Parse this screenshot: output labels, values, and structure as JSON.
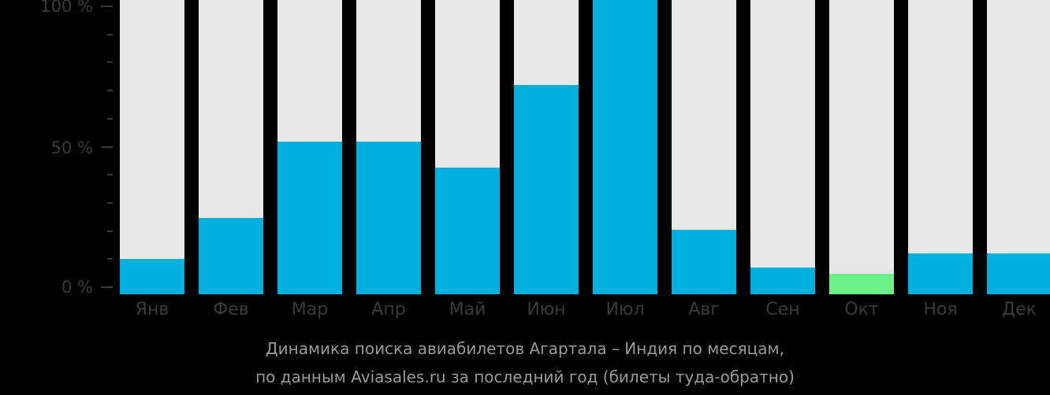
{
  "chart_data": {
    "type": "bar",
    "title": "Динамика поиска авиабилетов Агартала – Индия по месяцам, по данным Aviasales.ru за последний год (билеты туда-обратно)",
    "categories": [
      "Янв",
      "Фев",
      "Мар",
      "Апр",
      "Май",
      "Июн",
      "Июл",
      "Авг",
      "Сен",
      "Окт",
      "Ноя",
      "Дек"
    ],
    "values": [
      12,
      26,
      52,
      52,
      43,
      71,
      100,
      22,
      9,
      7,
      14,
      14
    ],
    "highlight_index": 9,
    "ylabel": "",
    "xlabel": "",
    "ylim": [
      0,
      100
    ],
    "yticks": [
      "0 %",
      "50 %",
      "100 %"
    ],
    "grid": false,
    "colors": {
      "bar": "#00b0dc",
      "highlight": "#6cf087",
      "track": "#e8e8e8",
      "background": "#000000"
    }
  },
  "axis": {
    "y_top": "100 %",
    "y_mid": "50 %",
    "y_bottom": "0 %"
  },
  "caption": {
    "line1": "Динамика поиска авиабилетов Агартала – Индия по месяцам,",
    "line2": "по данным Aviasales.ru за последний год (билеты туда-обратно)"
  }
}
